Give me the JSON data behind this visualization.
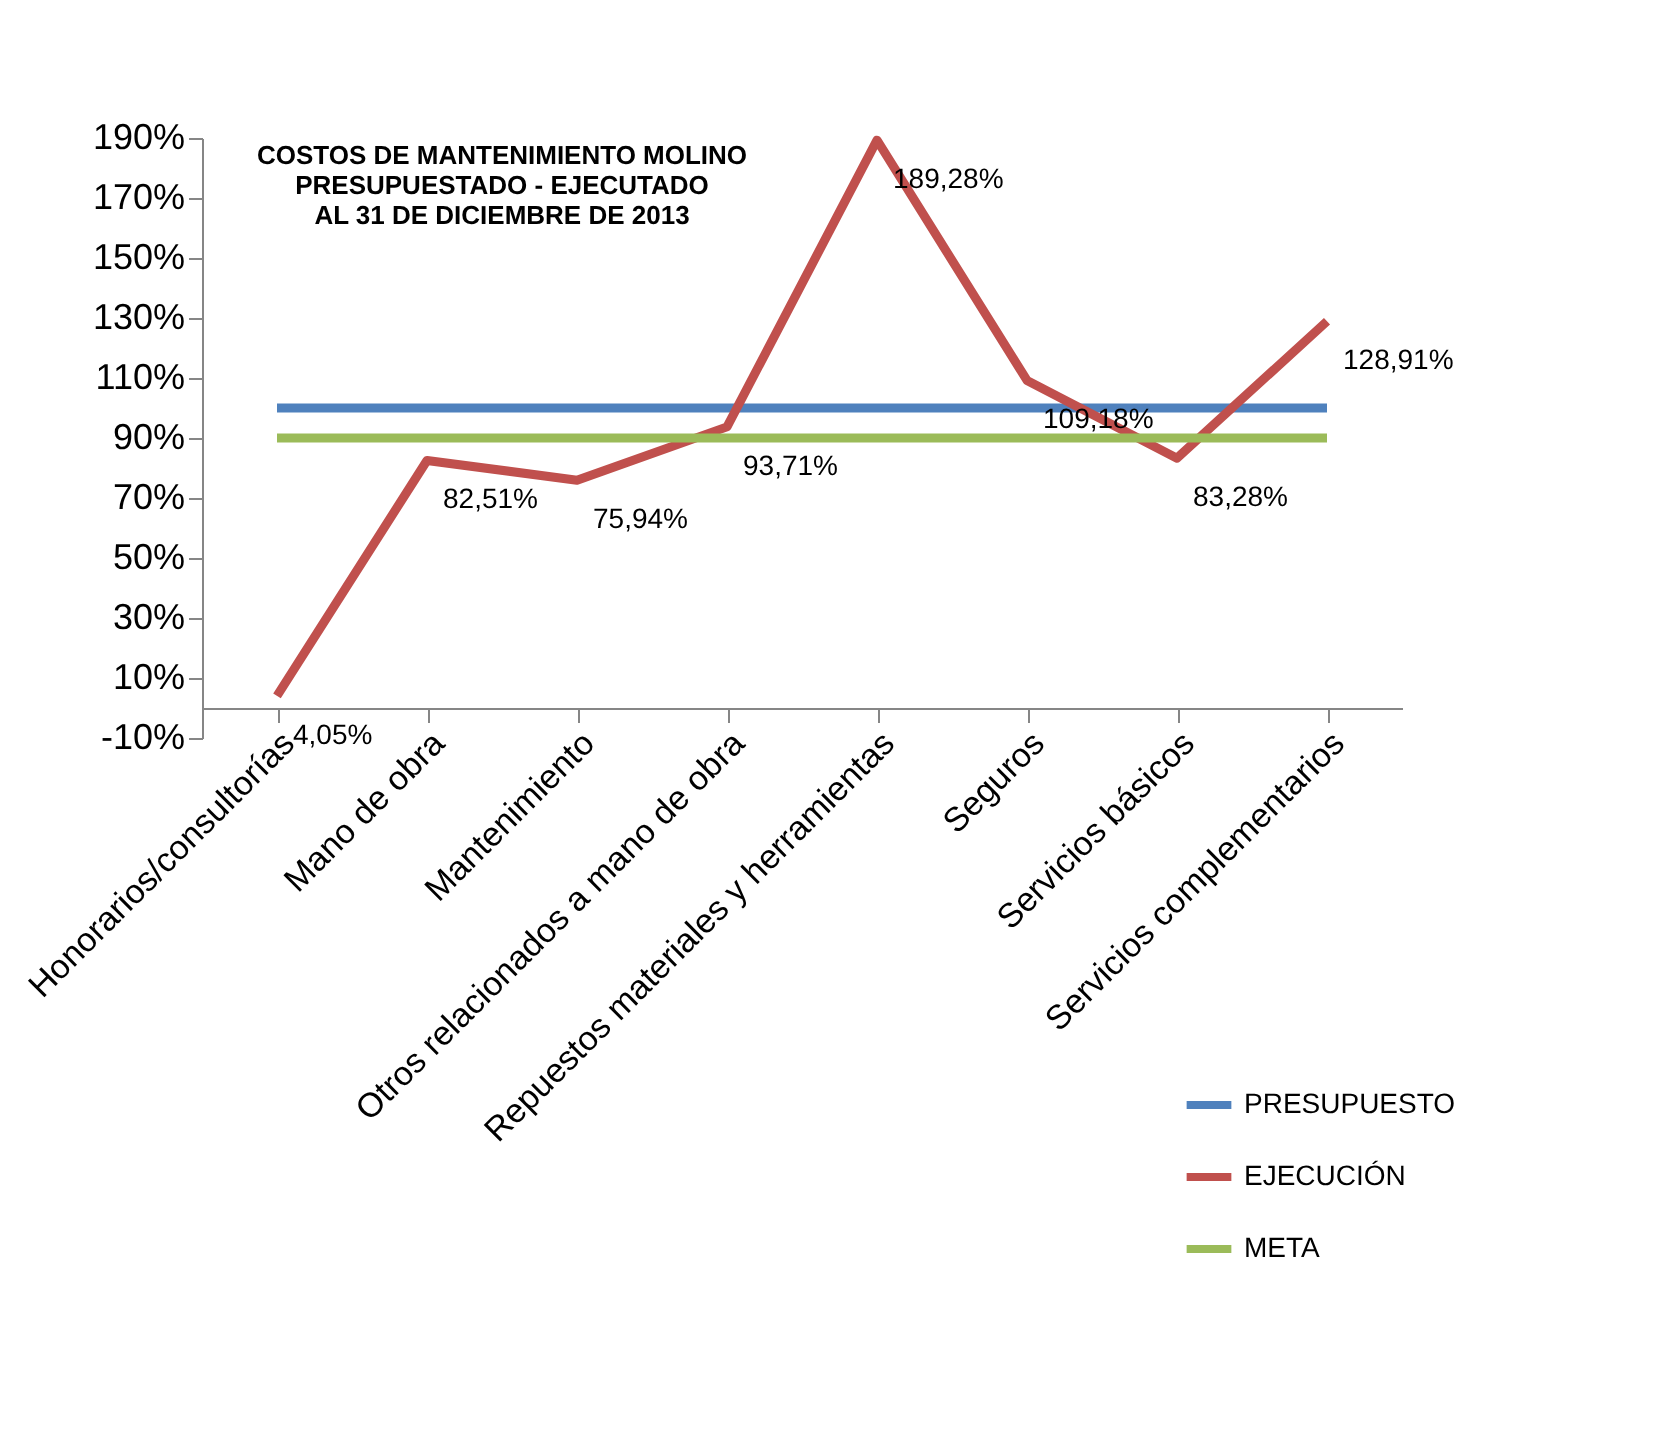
{
  "chart_data": {
    "type": "line",
    "title": "COSTOS DE MANTENIMIENTO MOLINO\nPRESUPUESTADO - EJECUTADO\nAL 31 DE DICIEMBRE DE 2013",
    "categories": [
      "Honorarios/consultorías",
      "Mano de obra",
      "Mantenimiento",
      "Otros relacionados a mano de obra",
      "Repuestos materiales y herramientas",
      "Seguros",
      "Servicios básicos",
      "Servicios complementarios"
    ],
    "series": [
      {
        "name": "PRESUPUESTO",
        "color": "#4f81bd",
        "values": [
          100,
          100,
          100,
          100,
          100,
          100,
          100,
          100
        ]
      },
      {
        "name": "EJECUCIÓN",
        "color": "#c0504d",
        "values": [
          4.05,
          82.51,
          75.94,
          93.71,
          189.28,
          109.18,
          83.28,
          128.91
        ],
        "value_labels": [
          "4,05%",
          "82,51%",
          "75,94%",
          "93,71%",
          "189,28%",
          "109,18%",
          "83,28%",
          "128,91%"
        ]
      },
      {
        "name": "META",
        "color": "#9bbb59",
        "values": [
          90,
          90,
          90,
          90,
          90,
          90,
          90,
          90
        ]
      }
    ],
    "ylim": [
      -10,
      190
    ],
    "yticks": [
      {
        "value": -10,
        "label": "-10%"
      },
      {
        "value": 10,
        "label": "10%"
      },
      {
        "value": 30,
        "label": "30%"
      },
      {
        "value": 50,
        "label": "50%"
      },
      {
        "value": 70,
        "label": "70%"
      },
      {
        "value": 90,
        "label": "90%"
      },
      {
        "value": 110,
        "label": "110%"
      },
      {
        "value": 130,
        "label": "130%"
      },
      {
        "value": 150,
        "label": "150%"
      },
      {
        "value": 170,
        "label": "170%"
      },
      {
        "value": 190,
        "label": "190%"
      }
    ],
    "grid": false,
    "legend": "bottom right",
    "marker": "none",
    "line_style": "solid"
  }
}
